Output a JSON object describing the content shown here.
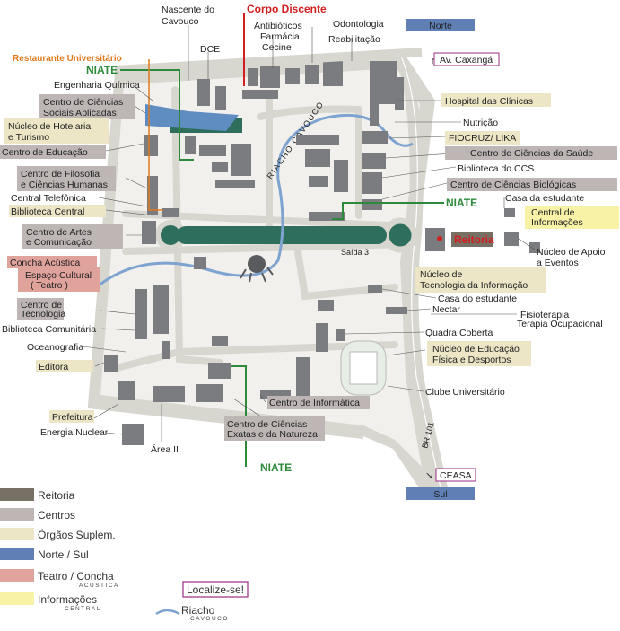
{
  "colors": {
    "reitoria": "#777065",
    "centros": "#bdb6b5",
    "orgaos": "#ece6c6",
    "norte_sul": "#5f7fb5",
    "teatro": "#e0a39c",
    "info": "#f7f2a6",
    "riacho": "#7ea3d0",
    "niate": "#2c8a3a",
    "corpo": "#d11f1f",
    "restaurante": "#e07a1f",
    "localize": "#9b2b83"
  },
  "map": {
    "compass": {
      "north": "Norte",
      "south": "Sul"
    },
    "highlights": {
      "corpo_discente": "Corpo Discente",
      "restaurante": "Restaurante Universitário",
      "niate_1": "NIATE",
      "niate_2": "NIATE",
      "niate_3": "NIATE",
      "reitoria": "Reitoria"
    },
    "roads": {
      "av_caxanga": "Av. Caxangá",
      "ceasa": "CEASA",
      "br101": "BR 101",
      "saida3": "Saída 3",
      "riacho": "RIACHO CAVOUCO"
    },
    "labels": {
      "nascente": [
        "Nascente do",
        "Cavouco"
      ],
      "dce": "DCE",
      "antibioticos": "Antibióticos",
      "farmacia": "Farmácia",
      "cecine": "Cecine",
      "odontologia": "Odontologia",
      "reabilitacao": "Reabilitação",
      "eng_quimica": "Engenharia Química",
      "ccsa": [
        "Centro de Ciências",
        "Sociais Aplicadas"
      ],
      "hotelaria": [
        "Núcleo de Hotelaria",
        "e Turismo"
      ],
      "educacao": "Centro de Educação",
      "cfch": [
        "Centro de Filosofia",
        "e Ciências Humanas"
      ],
      "central_tel": "Central Telefônica",
      "biblioteca_central": "Biblioteca Central",
      "cac": [
        "Centro de Artes",
        "e Comunicação"
      ],
      "concha": "Concha Acústica",
      "espaco": [
        "Espaço Cultural",
        "( Teatro )"
      ],
      "ctg": [
        "Centro de",
        "Tecnologia"
      ],
      "bib_comunitaria": "Biblioteca Comunitária",
      "oceanografia": "Oceanografia",
      "editora": "Editora",
      "prefeitura": "Prefeitura",
      "energia": "Energia Nuclear",
      "area2": "Área II",
      "hc": "Hospital das Clínicas",
      "nutricao": "Nutrição",
      "fiocruz": "FIOCRUZ/ LIKA",
      "ccs": "Centro de Ciências da Saúde",
      "bib_ccs": "Biblioteca do CCS",
      "ccb": "Centro de Ciências Biológicas",
      "casa_estudante_1": "Casa da estudante",
      "central_info": [
        "Central de",
        "Informações"
      ],
      "apoio_eventos": [
        "Núcleo de Apoio",
        "a Eventos"
      ],
      "nti": [
        "Núcleo de",
        "Tecnologia da Informação"
      ],
      "casa_estudante_2": "Casa do estudante",
      "nectar": "Nectar",
      "fisioterapia": "Fisioterapia",
      "terapia": "Terapia Ocupacional",
      "quadra": "Quadra Coberta",
      "nefd": [
        "Núcleo de Educação",
        "Física e Desportos"
      ],
      "clube": "Clube Universitário",
      "cin": "Centro de Informática",
      "ccen": [
        "Centro de Ciências",
        "Exatas e da Natureza"
      ]
    }
  },
  "legend": {
    "items": [
      {
        "label": "Reitoria",
        "sub": ""
      },
      {
        "label": "Centros",
        "sub": ""
      },
      {
        "label": "Órgãos Suplem.",
        "sub": ""
      },
      {
        "label": "Norte / Sul",
        "sub": ""
      },
      {
        "label": "Teatro / Concha",
        "sub": "ACÚSTICA"
      },
      {
        "label": "Informações",
        "sub": "CENTRAL"
      }
    ],
    "localize": "Localize-se!",
    "riacho": "Riacho",
    "riacho_sub": "CAVOUCO"
  }
}
